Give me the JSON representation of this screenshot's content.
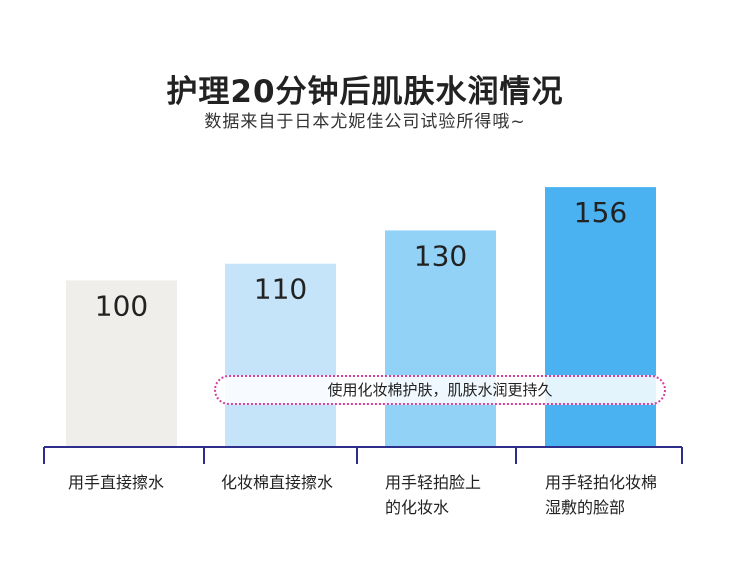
{
  "header": {
    "title": "护理20分钟后肌肤水润情况",
    "subtitle": "数据来自于日本尤妮佳公司试验所得哦~"
  },
  "annotation": "使用化妆棉护肤，肌肤水润更持久",
  "chart_data": {
    "type": "bar",
    "title": "护理20分钟后肌肤水润情况",
    "subtitle": "数据来自于日本尤妮佳公司试验所得哦~",
    "categories": [
      [
        "用手直接擦水"
      ],
      [
        "化妆棉直接擦水"
      ],
      [
        "用手轻拍脸上",
        "的化妆水"
      ],
      [
        "用手轻拍化妆棉",
        "湿敷的脸部"
      ]
    ],
    "values": [
      100,
      110,
      130,
      156
    ],
    "data_labels": [
      "100",
      "110",
      "130",
      "156"
    ],
    "bar_colors": [
      "#efeeeb",
      "#c5e4fa",
      "#92d2f7",
      "#4ab2f0"
    ],
    "axis_color": "#2e2e8c",
    "ylim": [
      0,
      165
    ],
    "grid": false,
    "legend": "none",
    "xlabel": "",
    "ylabel": ""
  }
}
